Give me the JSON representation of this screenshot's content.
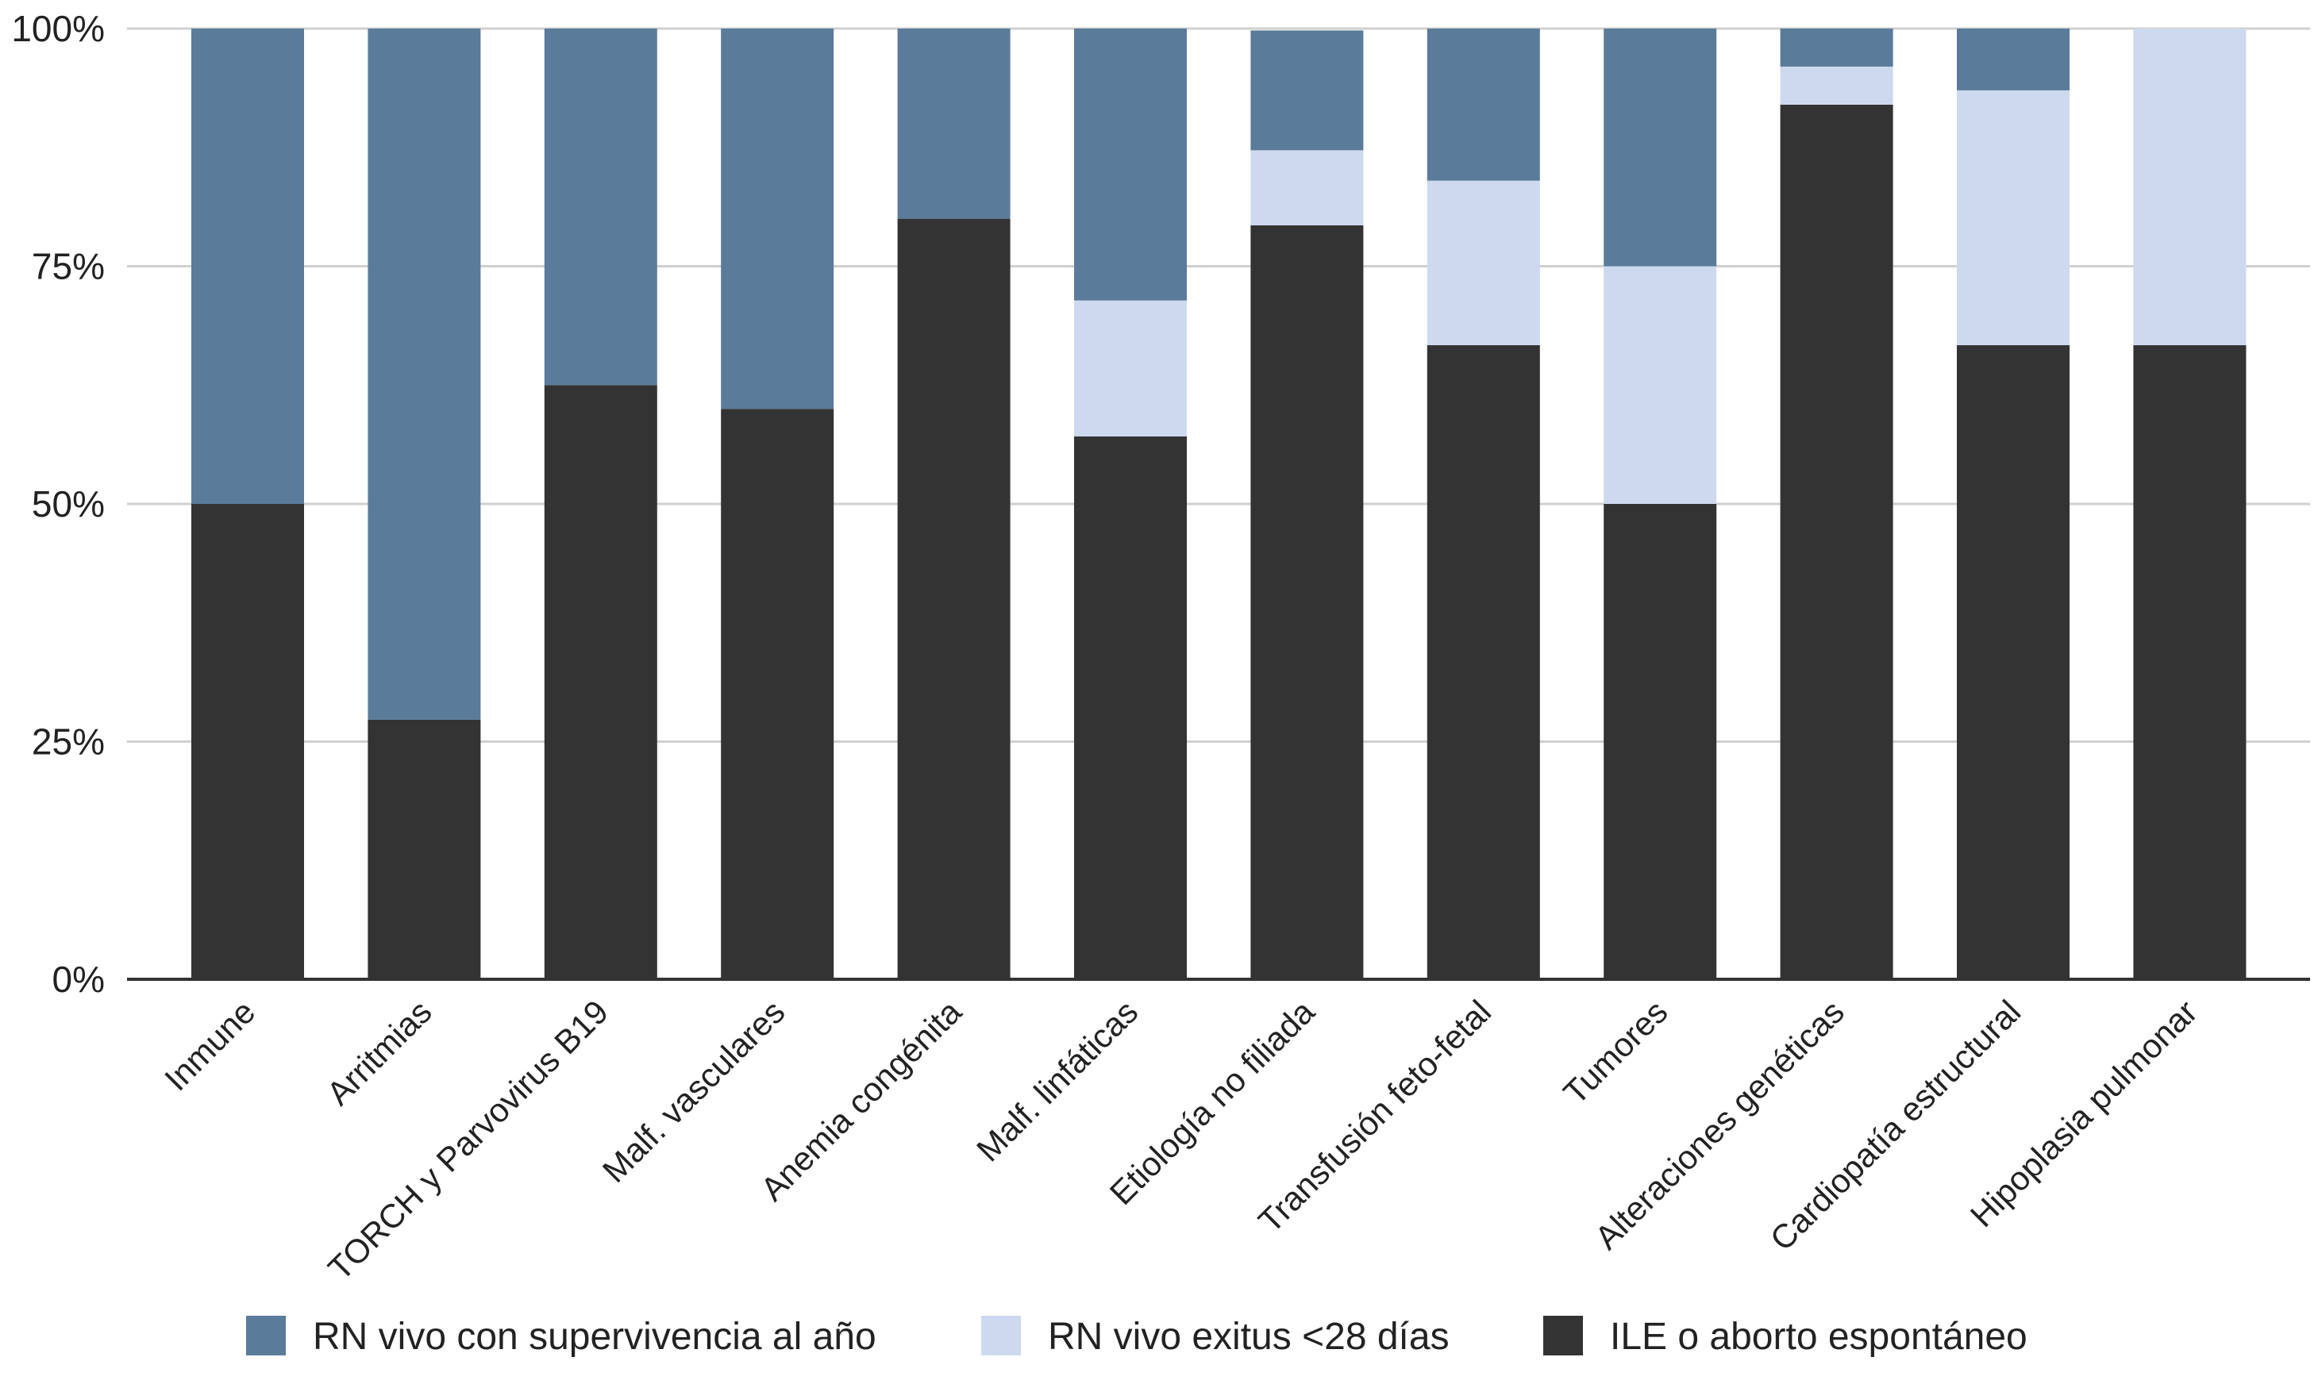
{
  "chart_data": {
    "type": "bar",
    "stacked": true,
    "normalized": true,
    "categories": [
      "Inmune",
      "Arritmias",
      "TORCH y Parvovirus B19",
      "Malf. vasculares",
      "Anemia congénita",
      "Malf. linfáticas",
      "Etiología no filiada",
      "Transfusión feto-fetal",
      "Tumores",
      "Alteraciones genéticas",
      "Cardiopatía estructural",
      "Hipoplasia pulmonar"
    ],
    "series": [
      {
        "name": "ILE o aborto espontáneo",
        "color": "#333333",
        "values": [
          50,
          27.3,
          62.5,
          60,
          80,
          57.1,
          79.3,
          66.7,
          50,
          92,
          66.7,
          66.7
        ]
      },
      {
        "name": "RN vivo exitus <28 días",
        "color": "#cdd9ee",
        "values": [
          0,
          0,
          0,
          0,
          0,
          14.3,
          7.9,
          17.3,
          25,
          4,
          26.8,
          33.3
        ]
      },
      {
        "name": "RN vivo con supervivencia al año",
        "color": "#5b7b9a",
        "values": [
          50,
          72.7,
          37.5,
          40,
          20,
          28.6,
          12.6,
          16.0,
          25,
          4,
          6.5,
          0
        ]
      }
    ],
    "legend_order": [
      "RN vivo con supervivencia al año",
      "RN vivo exitus <28 días",
      "ILE o aborto espontáneo"
    ],
    "y_ticks": [
      "0%",
      "25%",
      "50%",
      "75%",
      "100%"
    ],
    "ylim": [
      0,
      100
    ],
    "title": "",
    "xlabel": "",
    "ylabel": "",
    "grid": true,
    "legend_position": "bottom"
  }
}
